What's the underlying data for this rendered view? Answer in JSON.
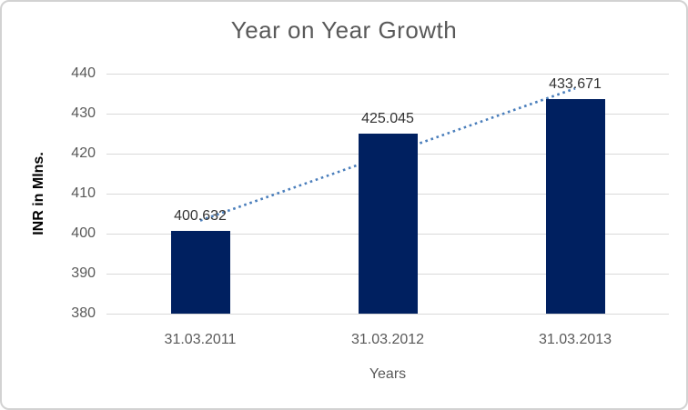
{
  "chart_data": {
    "type": "bar",
    "title": "Year on Year Growth",
    "xlabel": "Years",
    "ylabel": "INR in Mlns.",
    "categories": [
      "31.03.2011",
      "31.03.2012",
      "31.03.2013"
    ],
    "values": [
      400.632,
      425.045,
      433.671
    ],
    "data_labels": [
      "400.632",
      "425.045",
      "433.671"
    ],
    "ylim": [
      380,
      440
    ],
    "ytick_step": 10,
    "ytick_labels": [
      "380",
      "390",
      "400",
      "410",
      "420",
      "430",
      "440"
    ],
    "grid": "horizontal",
    "legend": "none",
    "bar_color": "#002060",
    "gridline_color": "#d9d9d9",
    "axis_text_color": "#595959",
    "data_label_color": "#333333",
    "trendline": {
      "type": "linear",
      "style": "dotted",
      "color": "#4a7ebb",
      "start_value": 403.26,
      "end_value": 436.3
    }
  }
}
